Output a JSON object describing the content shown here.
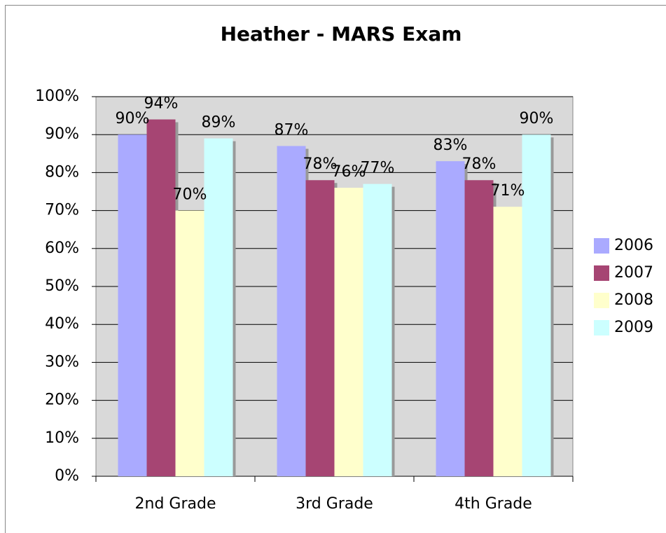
{
  "chart_data": {
    "type": "bar",
    "title": "Heather - MARS Exam",
    "categories": [
      "2nd Grade",
      "3rd Grade",
      "4th Grade"
    ],
    "series": [
      {
        "name": "2006",
        "color": "#aaaaff",
        "values": [
          90,
          87,
          83
        ],
        "value_labels": [
          "90%",
          "87%",
          "83%"
        ]
      },
      {
        "name": "2007",
        "color": "#a64573",
        "values": [
          94,
          78,
          78
        ],
        "value_labels": [
          "94%",
          "78%",
          "78%"
        ]
      },
      {
        "name": "2008",
        "color": "#ffffcc",
        "values": [
          70,
          76,
          71
        ],
        "value_labels": [
          "70%",
          "76%",
          "71%"
        ]
      },
      {
        "name": "2009",
        "color": "#ccffff",
        "values": [
          89,
          77,
          90
        ],
        "value_labels": [
          "89%",
          "77%",
          "90%"
        ]
      }
    ],
    "ylim": [
      0,
      100
    ],
    "yticks": [
      {
        "value": 0,
        "label": "0%"
      },
      {
        "value": 10,
        "label": "10%"
      },
      {
        "value": 20,
        "label": "20%"
      },
      {
        "value": 30,
        "label": "30%"
      },
      {
        "value": 40,
        "label": "40%"
      },
      {
        "value": 50,
        "label": "50%"
      },
      {
        "value": 60,
        "label": "60%"
      },
      {
        "value": 70,
        "label": "70%"
      },
      {
        "value": 80,
        "label": "80%"
      },
      {
        "value": 90,
        "label": "90%"
      },
      {
        "value": 100,
        "label": "100%"
      }
    ],
    "grid": true,
    "legend": "right"
  }
}
